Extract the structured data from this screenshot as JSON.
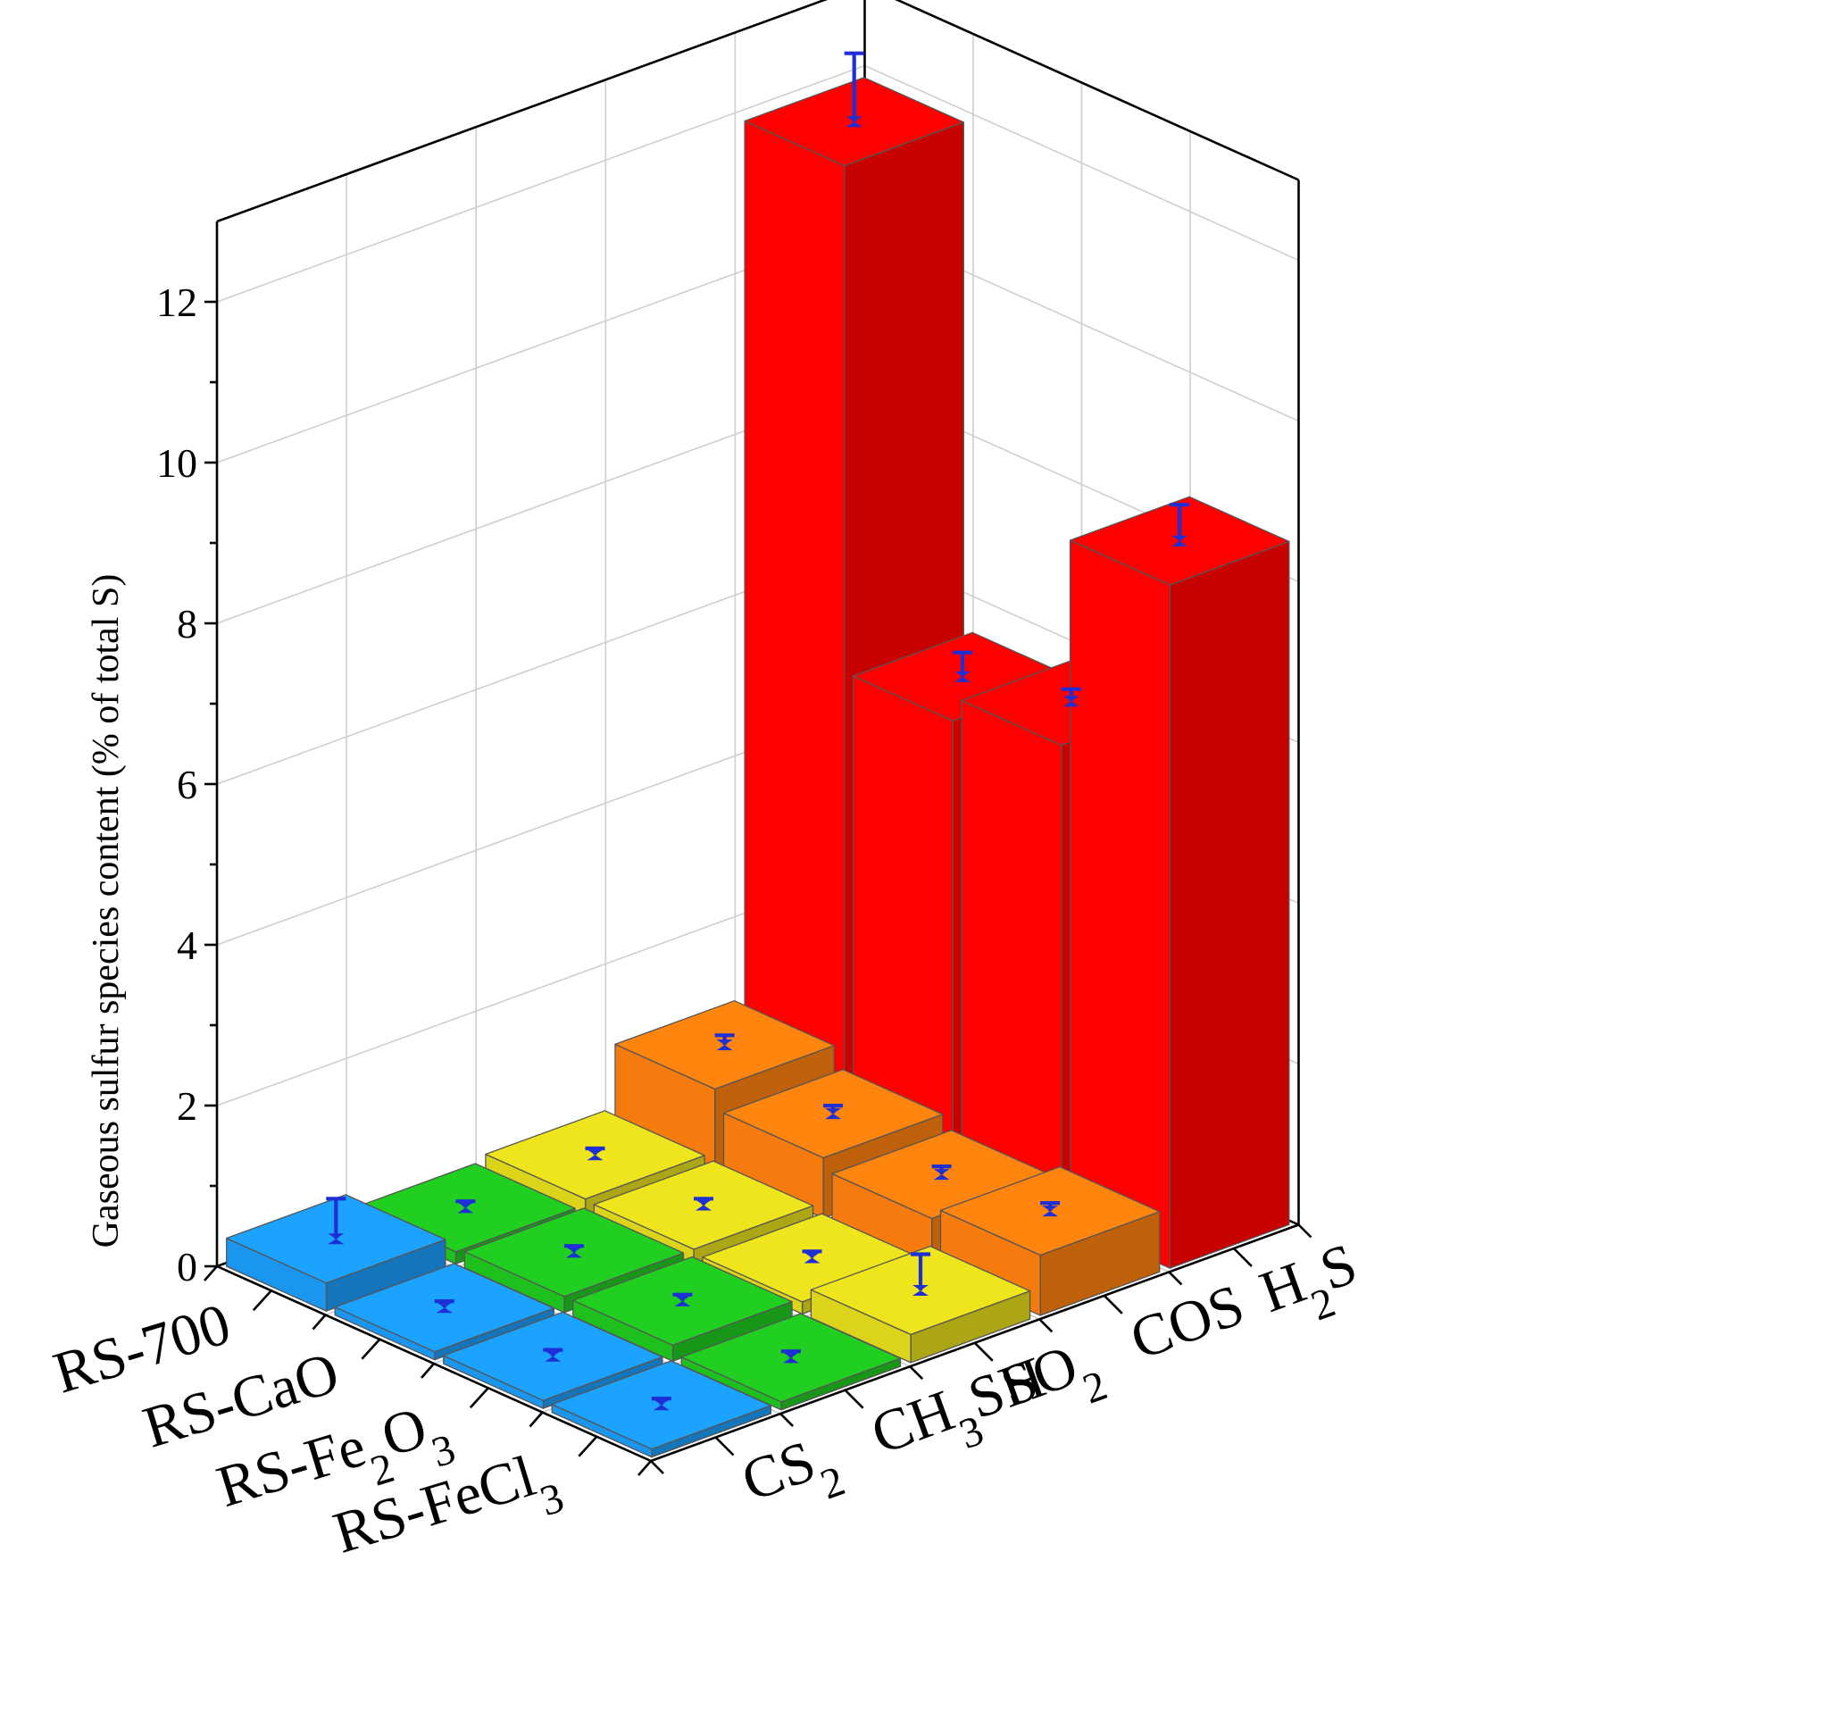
{
  "chart_data": {
    "type": "bar3d",
    "y_axis_label": "Gaseous sulfur species content (% of total S)",
    "z_range": [
      0,
      13
    ],
    "z_ticks": [
      "0",
      "2",
      "4",
      "6",
      "8",
      "10",
      "12"
    ],
    "samples": [
      {
        "label": "RS-700",
        "base": "RS-700",
        "sub": ""
      },
      {
        "label": "RS-CaO",
        "base": "RS-CaO",
        "sub": ""
      },
      {
        "label": "RS-Fe2O3",
        "base": "RS-Fe",
        "sub": "2",
        "base2": "O",
        "sub2": "3"
      },
      {
        "label": "RS-FeCl3",
        "base": "RS-FeCl",
        "sub": "3"
      }
    ],
    "species": [
      {
        "label": "CS2",
        "base": "CS",
        "sub": "2",
        "tail": ""
      },
      {
        "label": "CH3SH",
        "base": "CH",
        "sub": "3",
        "tail": "SH"
      },
      {
        "label": "SO2",
        "base": "SO",
        "sub": "2",
        "tail": ""
      },
      {
        "label": "COS",
        "base": "COS",
        "sub": "",
        "tail": ""
      },
      {
        "label": "H2S",
        "base": "H",
        "sub": "2",
        "tail": "S"
      }
    ],
    "values": [
      [
        0.35,
        0.15,
        0.22,
        1.0,
        11.9
      ],
      [
        0.1,
        0.2,
        0.2,
        0.75,
        5.6
      ],
      [
        0.1,
        0.2,
        0.15,
        0.6,
        5.9
      ],
      [
        0.1,
        0.1,
        0.35,
        0.75,
        8.5
      ]
    ],
    "errors": [
      [
        0.5,
        0.08,
        0.08,
        0.12,
        0.85
      ],
      [
        0.08,
        0.08,
        0.08,
        0.1,
        0.3
      ],
      [
        0.08,
        0.08,
        0.08,
        0.1,
        0.15
      ],
      [
        0.08,
        0.08,
        0.45,
        0.1,
        0.45
      ]
    ],
    "colors": [
      "#1a96ee",
      "#1ec01e",
      "#dcd41a",
      "#f57b0e",
      "#ff0000"
    ],
    "grid": true
  }
}
